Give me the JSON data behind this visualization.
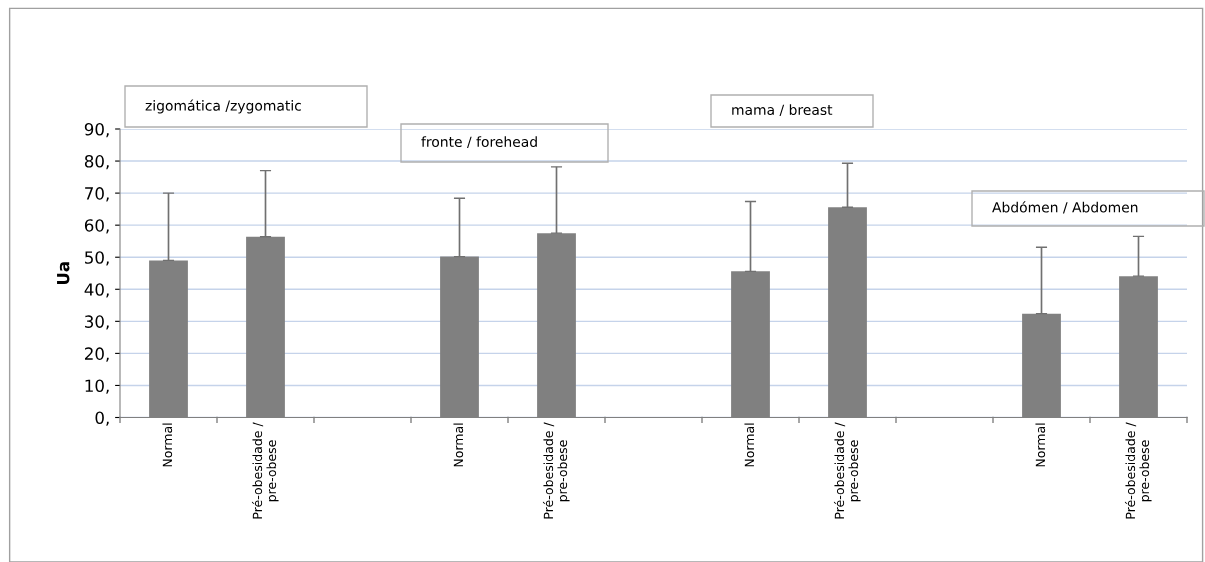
{
  "chart_data": {
    "type": "bar",
    "ylabel": "Ua",
    "categories": [
      "Normal",
      "Pré-obesidade /\npre-obese",
      null,
      "Normal",
      "Pré-obesidade /\npre-obese",
      null,
      "Normal",
      "Pré-obesidade /\npre-obese",
      null,
      "Normal",
      "Pré-obesidade /\npre-obese"
    ],
    "values": [
      49,
      56.4,
      null,
      50.2,
      57.5,
      null,
      45.6,
      65.6,
      null,
      32.4,
      44.1
    ],
    "errors": [
      [
        49,
        70
      ],
      [
        56.4,
        77
      ],
      null,
      [
        50.2,
        68.4
      ],
      [
        57.5,
        78.2
      ],
      null,
      [
        45.6,
        67.4
      ],
      [
        65.6,
        79.3
      ],
      null,
      [
        32.4,
        53.1
      ],
      [
        44.1,
        56.5
      ]
    ],
    "color": "#808080",
    "ylim": [
      0,
      90
    ],
    "yticks": [
      {
        "value": 0,
        "label": "0,"
      },
      {
        "value": 10,
        "label": "10,"
      },
      {
        "value": 20,
        "label": "20,"
      },
      {
        "value": 30,
        "label": "30,"
      },
      {
        "value": 40,
        "label": "40,"
      },
      {
        "value": 50,
        "label": "50,"
      },
      {
        "value": 60,
        "label": "60,"
      },
      {
        "value": 70,
        "label": "70,"
      },
      {
        "value": 80,
        "label": "80,"
      },
      {
        "value": 90,
        "label": "90,"
      }
    ],
    "grid": "y",
    "legend": false,
    "annotations": [
      "zigomática /zygomatic",
      "fronte / forehead",
      "mama / breast",
      "Abdómen / Abdomen"
    ]
  }
}
